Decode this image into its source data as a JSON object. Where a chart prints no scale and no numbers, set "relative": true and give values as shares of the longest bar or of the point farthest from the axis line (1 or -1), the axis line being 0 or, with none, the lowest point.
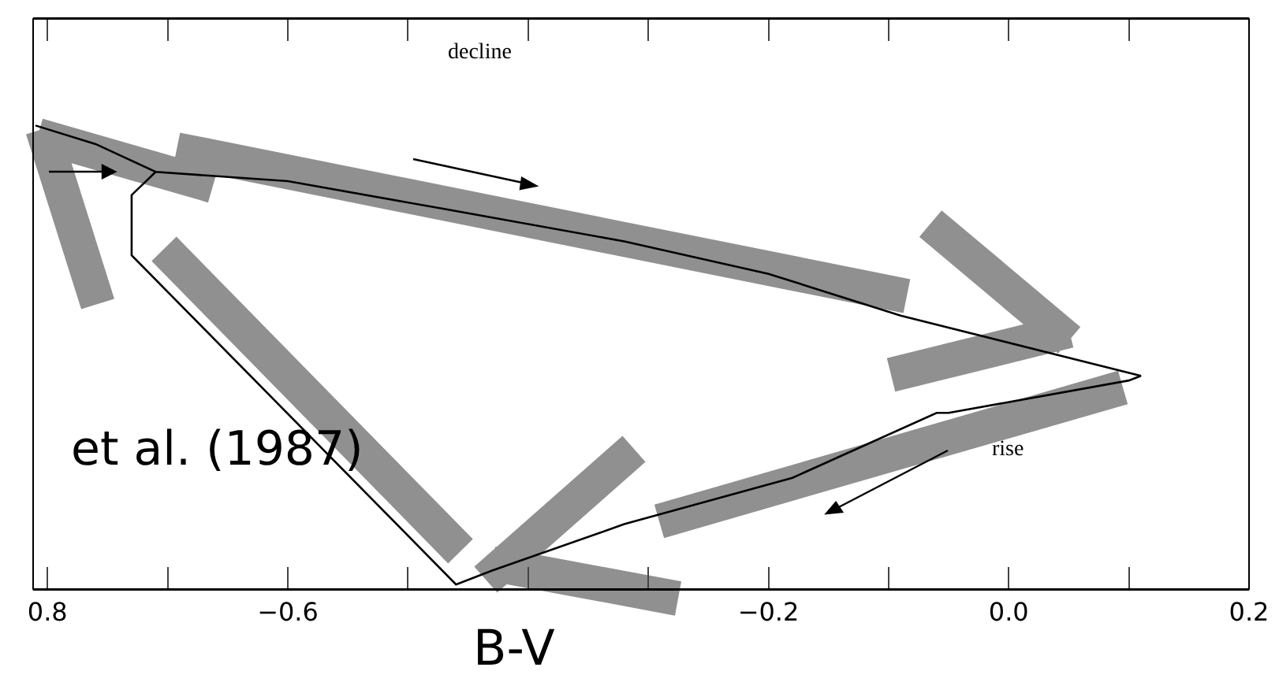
{
  "chart_data": {
    "type": "line",
    "relative": true,
    "xlabel": "B-V",
    "annotations": [
      "decline",
      "rise",
      "et al. (1987)"
    ],
    "xlim": [
      -0.812,
      0.2
    ],
    "xticks": [
      {
        "value": -0.8,
        "label": "0.8"
      },
      {
        "value": -0.7,
        "label": null
      },
      {
        "value": -0.6,
        "label": "−0.6"
      },
      {
        "value": -0.5,
        "label": null
      },
      {
        "value": -0.4,
        "label": null
      },
      {
        "value": -0.3,
        "label": null
      },
      {
        "value": -0.2,
        "label": "−0.2"
      },
      {
        "value": -0.1,
        "label": null
      },
      {
        "value": 0.0,
        "label": "0.0"
      },
      {
        "value": 0.1,
        "label": null
      },
      {
        "value": 0.2,
        "label": "0.2"
      }
    ],
    "series": [
      {
        "color": "#000000",
        "x": [
          -0.81,
          -0.76,
          -0.71,
          -0.6,
          -0.47,
          -0.32,
          -0.2,
          -0.09,
          0.11,
          0.1,
          -0.05,
          -0.06,
          -0.18,
          -0.32,
          -0.43,
          -0.46,
          -0.73,
          -0.73,
          -0.73,
          -0.71
        ],
        "values": [
          1.0,
          0.96,
          0.9,
          0.88,
          0.82,
          0.75,
          0.68,
          0.59,
          0.46,
          0.45,
          0.38,
          0.38,
          0.24,
          0.14,
          0.04,
          0.01,
          0.72,
          0.75,
          0.85,
          0.9
        ]
      }
    ],
    "line_style": "solid"
  }
}
